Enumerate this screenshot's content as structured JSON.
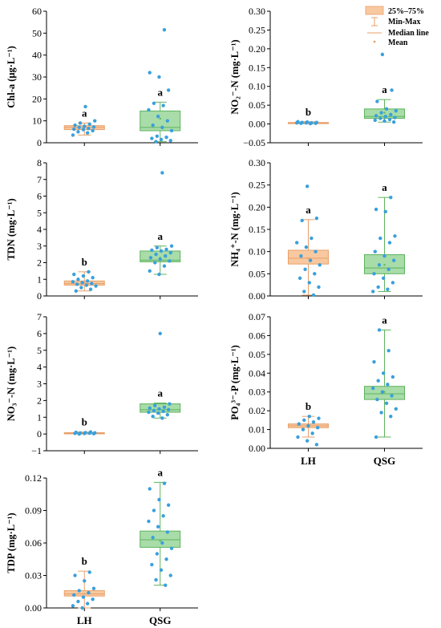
{
  "colors": {
    "lh_fill": "#f8c9a0",
    "lh_edge": "#e8a06a",
    "qsg_fill": "#a8dca8",
    "qsg_edge": "#5fb35f",
    "point": "#3aa0dc",
    "axis": "#000000"
  },
  "chart_data": [
    {
      "type": "box",
      "id": "chla",
      "ylabel": "Chl-a (μg·L⁻¹)",
      "ylim": [
        0,
        60
      ],
      "yticks": [
        0,
        10,
        20,
        30,
        40,
        50,
        60
      ],
      "categories": [
        "LH",
        "QSG"
      ],
      "show_xlabels": false,
      "groups": [
        {
          "name": "LH",
          "min": 3.5,
          "q1": 6.0,
          "median": 7.0,
          "q3": 7.8,
          "max": 9.0,
          "mean": 6.8,
          "sig": "a",
          "points": [
            3.5,
            4.5,
            5.0,
            5.5,
            6.0,
            6.2,
            6.5,
            7.0,
            7.2,
            7.5,
            8.0,
            8.5,
            9.0,
            10.0,
            16.5
          ]
        },
        {
          "name": "QSG",
          "min": 0.5,
          "q1": 5.5,
          "median": 7.0,
          "q3": 14.5,
          "max": 18.5,
          "mean": 11.0,
          "sig": "a",
          "points": [
            0.5,
            1.0,
            1.5,
            2.0,
            2.5,
            3.0,
            5.5,
            7.0,
            8.0,
            10.0,
            12.0,
            15.0,
            17.0,
            18.0,
            24.0,
            30.0,
            32.0,
            51.5
          ]
        }
      ]
    },
    {
      "type": "box",
      "id": "no2",
      "ylabel": "NO₂⁻-N (mg·L⁻¹)",
      "ylim": [
        -0.05,
        0.3
      ],
      "yticks": [
        -0.05,
        0.0,
        0.05,
        0.1,
        0.15,
        0.2,
        0.25,
        0.3
      ],
      "categories": [
        "LH",
        "QSG"
      ],
      "show_xlabels": false,
      "groups": [
        {
          "name": "LH",
          "min": 0.001,
          "q1": 0.002,
          "median": 0.003,
          "q3": 0.004,
          "max": 0.006,
          "mean": 0.003,
          "sig": "b",
          "points": [
            0.001,
            0.002,
            0.002,
            0.003,
            0.003,
            0.003,
            0.004,
            0.004,
            0.005,
            0.006
          ]
        },
        {
          "name": "QSG",
          "min": 0.005,
          "q1": 0.015,
          "median": 0.02,
          "q3": 0.04,
          "max": 0.065,
          "mean": 0.03,
          "sig": "a",
          "points": [
            0.005,
            0.008,
            0.01,
            0.012,
            0.015,
            0.017,
            0.02,
            0.022,
            0.025,
            0.03,
            0.035,
            0.04,
            0.06,
            0.09,
            0.185
          ]
        }
      ],
      "legend": {
        "placement": "top-right",
        "items": [
          "25%–75%",
          "Min-Max",
          "Median line",
          "Mean"
        ]
      }
    },
    {
      "type": "box",
      "id": "tdn",
      "ylabel": "TDN (mg·L⁻¹)",
      "ylim": [
        0,
        8
      ],
      "yticks": [
        0,
        1,
        2,
        3,
        4,
        5,
        6,
        7,
        8
      ],
      "categories": [
        "LH",
        "QSG"
      ],
      "show_xlabels": false,
      "groups": [
        {
          "name": "LH",
          "min": 0.3,
          "q1": 0.65,
          "median": 0.75,
          "q3": 0.9,
          "max": 1.45,
          "mean": 0.8,
          "sig": "b",
          "points": [
            0.3,
            0.4,
            0.5,
            0.6,
            0.65,
            0.7,
            0.75,
            0.8,
            0.85,
            0.9,
            1.0,
            1.1,
            1.2,
            1.3,
            1.45
          ]
        },
        {
          "name": "QSG",
          "min": 1.3,
          "q1": 2.05,
          "median": 2.15,
          "q3": 2.7,
          "max": 3.0,
          "mean": 2.3,
          "sig": "a",
          "points": [
            1.3,
            1.5,
            1.8,
            2.0,
            2.1,
            2.2,
            2.3,
            2.4,
            2.5,
            2.6,
            2.7,
            2.75,
            2.8,
            2.9,
            3.0,
            7.4
          ]
        }
      ]
    },
    {
      "type": "box",
      "id": "nh4",
      "ylabel": "NH₄⁺-N (mg·L⁻¹)",
      "ylim": [
        0,
        0.3
      ],
      "yticks": [
        0.0,
        0.05,
        0.1,
        0.15,
        0.2,
        0.25,
        0.3
      ],
      "categories": [
        "LH",
        "QSG"
      ],
      "show_xlabels": false,
      "groups": [
        {
          "name": "LH",
          "min": 0.002,
          "q1": 0.072,
          "median": 0.085,
          "q3": 0.103,
          "max": 0.172,
          "mean": 0.085,
          "sig": "a",
          "points": [
            0.002,
            0.01,
            0.02,
            0.03,
            0.04,
            0.05,
            0.06,
            0.07,
            0.08,
            0.09,
            0.1,
            0.11,
            0.12,
            0.13,
            0.17,
            0.175,
            0.247
          ]
        },
        {
          "name": "QSG",
          "min": 0.01,
          "q1": 0.05,
          "median": 0.063,
          "q3": 0.093,
          "max": 0.222,
          "mean": 0.07,
          "sig": "a",
          "points": [
            0.01,
            0.015,
            0.02,
            0.03,
            0.04,
            0.05,
            0.06,
            0.07,
            0.08,
            0.09,
            0.1,
            0.12,
            0.13,
            0.135,
            0.19,
            0.195,
            0.222
          ]
        }
      ]
    },
    {
      "type": "box",
      "id": "no3",
      "ylabel": "NO₃⁻-N (mg·L⁻¹)",
      "ylim": [
        -1,
        7
      ],
      "yticks": [
        -1,
        0,
        1,
        2,
        3,
        4,
        5,
        6,
        7
      ],
      "categories": [
        "LH",
        "QSG"
      ],
      "show_xlabels": false,
      "groups": [
        {
          "name": "LH",
          "min": 0.0,
          "q1": 0.03,
          "median": 0.05,
          "q3": 0.08,
          "max": 0.12,
          "mean": 0.05,
          "sig": "b",
          "points": [
            0.0,
            0.02,
            0.03,
            0.04,
            0.05,
            0.06,
            0.07,
            0.08,
            0.1,
            0.12
          ]
        },
        {
          "name": "QSG",
          "min": 0.95,
          "q1": 1.3,
          "median": 1.45,
          "q3": 1.8,
          "max": 1.85,
          "mean": 1.5,
          "sig": "a",
          "points": [
            0.95,
            1.05,
            1.15,
            1.25,
            1.3,
            1.35,
            1.4,
            1.45,
            1.5,
            1.55,
            1.6,
            1.7,
            1.8,
            6.0
          ]
        }
      ]
    },
    {
      "type": "box",
      "id": "po4",
      "ylabel": "PO₄³⁻-P (mg·L⁻¹)",
      "ylim": [
        0,
        0.07
      ],
      "yticks": [
        0.0,
        0.01,
        0.02,
        0.03,
        0.04,
        0.05,
        0.06,
        0.07
      ],
      "categories": [
        "LH",
        "QSG"
      ],
      "show_xlabels": true,
      "groups": [
        {
          "name": "LH",
          "min": 0.006,
          "q1": 0.011,
          "median": 0.012,
          "q3": 0.013,
          "max": 0.017,
          "mean": 0.012,
          "sig": "b",
          "points": [
            0.002,
            0.004,
            0.006,
            0.008,
            0.01,
            0.011,
            0.012,
            0.013,
            0.014,
            0.015,
            0.016,
            0.017
          ]
        },
        {
          "name": "QSG",
          "min": 0.006,
          "q1": 0.026,
          "median": 0.029,
          "q3": 0.033,
          "max": 0.063,
          "mean": 0.03,
          "sig": "a",
          "points": [
            0.006,
            0.017,
            0.019,
            0.021,
            0.024,
            0.026,
            0.028,
            0.03,
            0.032,
            0.034,
            0.036,
            0.038,
            0.04,
            0.046,
            0.052,
            0.063
          ]
        }
      ]
    },
    {
      "type": "box",
      "id": "tdp",
      "ylabel": "TDP (mg·L⁻¹)",
      "ylim": [
        0,
        0.12
      ],
      "yticks": [
        0.0,
        0.03,
        0.06,
        0.09,
        0.12
      ],
      "categories": [
        "LH",
        "QSG"
      ],
      "show_xlabels": true,
      "groups": [
        {
          "name": "LH",
          "min": 0.0,
          "q1": 0.011,
          "median": 0.013,
          "q3": 0.016,
          "max": 0.034,
          "mean": 0.013,
          "sig": "b",
          "points": [
            0.0,
            0.002,
            0.004,
            0.006,
            0.008,
            0.01,
            0.012,
            0.014,
            0.016,
            0.018,
            0.025,
            0.03,
            0.033
          ]
        },
        {
          "name": "QSG",
          "min": 0.021,
          "q1": 0.056,
          "median": 0.063,
          "q3": 0.071,
          "max": 0.116,
          "mean": 0.062,
          "sig": "a",
          "points": [
            0.021,
            0.026,
            0.03,
            0.035,
            0.04,
            0.045,
            0.05,
            0.055,
            0.06,
            0.065,
            0.07,
            0.075,
            0.08,
            0.085,
            0.09,
            0.095,
            0.1,
            0.11,
            0.115
          ]
        }
      ]
    }
  ]
}
